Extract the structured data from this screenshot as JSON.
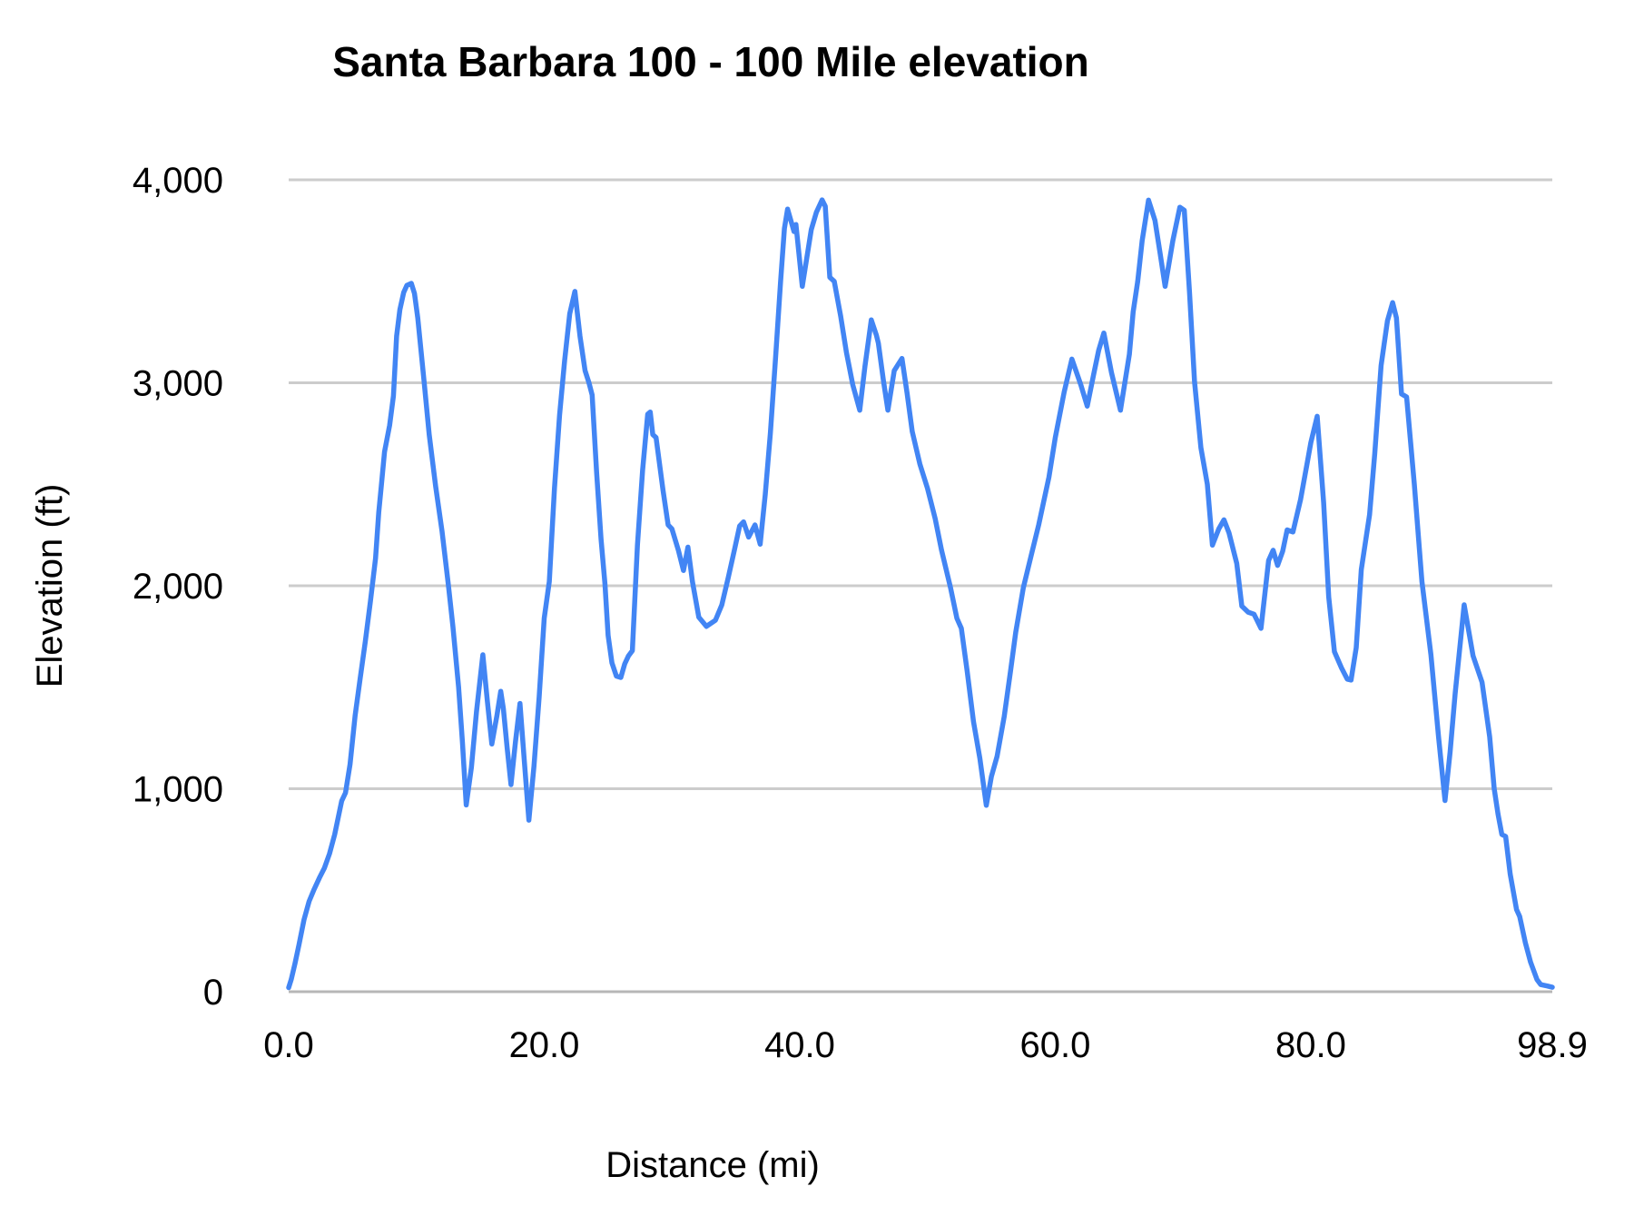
{
  "title": "Santa Barbara 100 - 100 Mile elevation",
  "x_axis": {
    "label": "Distance (mi)",
    "tick_labels": [
      "0.0",
      "20.0",
      "40.0",
      "60.0",
      "80.0",
      "98.9"
    ],
    "tick_values": [
      0,
      20,
      40,
      60,
      80,
      98.9
    ]
  },
  "y_axis": {
    "label": "Elevation (ft)",
    "tick_labels": [
      "0",
      "1,000",
      "2,000",
      "3,000",
      "4,000"
    ],
    "tick_values": [
      0,
      1000,
      2000,
      3000,
      4000
    ]
  },
  "colors": {
    "line": "#4285f4",
    "gridline": "#cccccc",
    "baseline": "#b7b7b7",
    "text": "#000000",
    "background": "#ffffff"
  },
  "chart_data": {
    "type": "line",
    "title": "Santa Barbara 100 - 100 Mile elevation",
    "xlabel": "Distance (mi)",
    "ylabel": "Elevation (ft)",
    "xlim": [
      0,
      98.9
    ],
    "ylim": [
      0,
      4000
    ],
    "grid": "horizontal-only",
    "legend": false,
    "series": [
      {
        "name": "elevation",
        "points": [
          [
            0,
            20
          ],
          [
            0.2,
            60
          ],
          [
            0.5,
            140
          ],
          [
            0.8,
            230
          ],
          [
            1.2,
            355
          ],
          [
            1.6,
            445
          ],
          [
            2.0,
            505
          ],
          [
            2.4,
            560
          ],
          [
            2.8,
            610
          ],
          [
            3.2,
            680
          ],
          [
            3.6,
            775
          ],
          [
            3.9,
            865
          ],
          [
            4.15,
            940
          ],
          [
            4.45,
            980
          ],
          [
            4.8,
            1120
          ],
          [
            5.2,
            1360
          ],
          [
            5.6,
            1545
          ],
          [
            6.0,
            1725
          ],
          [
            6.4,
            1925
          ],
          [
            6.8,
            2135
          ],
          [
            7.05,
            2360
          ],
          [
            7.25,
            2490
          ],
          [
            7.5,
            2660
          ],
          [
            7.9,
            2790
          ],
          [
            8.2,
            2935
          ],
          [
            8.45,
            3230
          ],
          [
            8.7,
            3360
          ],
          [
            9.0,
            3445
          ],
          [
            9.25,
            3480
          ],
          [
            9.6,
            3490
          ],
          [
            9.85,
            3440
          ],
          [
            10.1,
            3320
          ],
          [
            10.6,
            3005
          ],
          [
            11.0,
            2745
          ],
          [
            11.5,
            2490
          ],
          [
            12.0,
            2270
          ],
          [
            12.5,
            2005
          ],
          [
            12.85,
            1800
          ],
          [
            13.3,
            1500
          ],
          [
            13.6,
            1230
          ],
          [
            13.9,
            920
          ],
          [
            14.3,
            1105
          ],
          [
            14.7,
            1380
          ],
          [
            15.2,
            1660
          ],
          [
            15.55,
            1430
          ],
          [
            15.9,
            1220
          ],
          [
            16.3,
            1360
          ],
          [
            16.6,
            1480
          ],
          [
            16.8,
            1395
          ],
          [
            17.1,
            1200
          ],
          [
            17.4,
            1020
          ],
          [
            17.75,
            1230
          ],
          [
            18.1,
            1420
          ],
          [
            18.45,
            1130
          ],
          [
            18.8,
            845
          ],
          [
            19.2,
            1110
          ],
          [
            19.6,
            1450
          ],
          [
            20.0,
            1840
          ],
          [
            20.4,
            2020
          ],
          [
            20.8,
            2480
          ],
          [
            21.2,
            2840
          ],
          [
            21.6,
            3110
          ],
          [
            22.0,
            3340
          ],
          [
            22.4,
            3450
          ],
          [
            22.8,
            3230
          ],
          [
            23.2,
            3060
          ],
          [
            23.5,
            3000
          ],
          [
            23.75,
            2940
          ],
          [
            24.1,
            2560
          ],
          [
            24.45,
            2230
          ],
          [
            24.75,
            2010
          ],
          [
            25.0,
            1755
          ],
          [
            25.3,
            1620
          ],
          [
            25.65,
            1555
          ],
          [
            26.0,
            1548
          ],
          [
            26.3,
            1615
          ],
          [
            26.6,
            1655
          ],
          [
            26.9,
            1680
          ],
          [
            27.3,
            2200
          ],
          [
            27.7,
            2570
          ],
          [
            28.1,
            2845
          ],
          [
            28.3,
            2856
          ],
          [
            28.5,
            2745
          ],
          [
            28.75,
            2730
          ],
          [
            29.3,
            2470
          ],
          [
            29.7,
            2300
          ],
          [
            30.0,
            2280
          ],
          [
            30.5,
            2175
          ],
          [
            30.9,
            2075
          ],
          [
            31.25,
            2190
          ],
          [
            31.6,
            2020
          ],
          [
            32.1,
            1845
          ],
          [
            32.7,
            1800
          ],
          [
            33.4,
            1830
          ],
          [
            33.9,
            1905
          ],
          [
            34.4,
            2040
          ],
          [
            34.9,
            2180
          ],
          [
            35.3,
            2295
          ],
          [
            35.6,
            2315
          ],
          [
            36.0,
            2240
          ],
          [
            36.5,
            2300
          ],
          [
            36.9,
            2205
          ],
          [
            37.3,
            2450
          ],
          [
            37.7,
            2750
          ],
          [
            38.1,
            3120
          ],
          [
            38.5,
            3500
          ],
          [
            38.8,
            3760
          ],
          [
            39.05,
            3856
          ],
          [
            39.35,
            3790
          ],
          [
            39.55,
            3745
          ],
          [
            39.7,
            3780
          ],
          [
            40.2,
            3475
          ],
          [
            40.9,
            3755
          ],
          [
            41.3,
            3840
          ],
          [
            41.75,
            3901
          ],
          [
            42.0,
            3870
          ],
          [
            42.35,
            3520
          ],
          [
            42.7,
            3500
          ],
          [
            43.2,
            3330
          ],
          [
            43.65,
            3150
          ],
          [
            44.15,
            2990
          ],
          [
            44.7,
            2865
          ],
          [
            45.1,
            3080
          ],
          [
            45.6,
            3310
          ],
          [
            46.0,
            3235
          ],
          [
            46.15,
            3195
          ],
          [
            46.55,
            3010
          ],
          [
            46.9,
            2865
          ],
          [
            47.4,
            3060
          ],
          [
            48.0,
            3120
          ],
          [
            48.4,
            2950
          ],
          [
            48.8,
            2760
          ],
          [
            49.4,
            2600
          ],
          [
            50.0,
            2480
          ],
          [
            50.6,
            2330
          ],
          [
            51.1,
            2175
          ],
          [
            51.8,
            1990
          ],
          [
            52.3,
            1840
          ],
          [
            52.65,
            1790
          ],
          [
            53.1,
            1580
          ],
          [
            53.6,
            1330
          ],
          [
            54.1,
            1150
          ],
          [
            54.6,
            918
          ],
          [
            55.0,
            1060
          ],
          [
            55.45,
            1160
          ],
          [
            56.0,
            1355
          ],
          [
            56.5,
            1580
          ],
          [
            56.9,
            1770
          ],
          [
            57.5,
            1990
          ],
          [
            58.1,
            2145
          ],
          [
            58.7,
            2300
          ],
          [
            59.5,
            2535
          ],
          [
            60.0,
            2730
          ],
          [
            60.7,
            2955
          ],
          [
            61.3,
            3117
          ],
          [
            62.0,
            2990
          ],
          [
            62.5,
            2885
          ],
          [
            63.0,
            3040
          ],
          [
            63.4,
            3160
          ],
          [
            63.8,
            3245
          ],
          [
            64.4,
            3050
          ],
          [
            65.1,
            2865
          ],
          [
            65.8,
            3140
          ],
          [
            66.1,
            3350
          ],
          [
            66.45,
            3500
          ],
          [
            66.8,
            3700
          ],
          [
            67.3,
            3900
          ],
          [
            67.8,
            3800
          ],
          [
            68.2,
            3640
          ],
          [
            68.6,
            3475
          ],
          [
            69.2,
            3700
          ],
          [
            69.75,
            3865
          ],
          [
            70.1,
            3850
          ],
          [
            70.5,
            3450
          ],
          [
            70.9,
            3005
          ],
          [
            71.4,
            2680
          ],
          [
            71.9,
            2500
          ],
          [
            72.3,
            2200
          ],
          [
            72.8,
            2280
          ],
          [
            73.2,
            2325
          ],
          [
            73.6,
            2260
          ],
          [
            74.2,
            2110
          ],
          [
            74.6,
            1900
          ],
          [
            75.1,
            1870
          ],
          [
            75.55,
            1860
          ],
          [
            76.1,
            1790
          ],
          [
            76.7,
            2125
          ],
          [
            77.05,
            2175
          ],
          [
            77.4,
            2100
          ],
          [
            77.8,
            2170
          ],
          [
            78.15,
            2275
          ],
          [
            78.6,
            2265
          ],
          [
            79.2,
            2425
          ],
          [
            79.7,
            2600
          ],
          [
            80.0,
            2705
          ],
          [
            80.5,
            2835
          ],
          [
            81.0,
            2410
          ],
          [
            81.4,
            1945
          ],
          [
            81.85,
            1675
          ],
          [
            82.4,
            1595
          ],
          [
            82.85,
            1540
          ],
          [
            83.15,
            1535
          ],
          [
            83.55,
            1695
          ],
          [
            83.95,
            2080
          ],
          [
            84.6,
            2350
          ],
          [
            85.0,
            2650
          ],
          [
            85.5,
            3085
          ],
          [
            86.0,
            3305
          ],
          [
            86.4,
            3395
          ],
          [
            86.7,
            3320
          ],
          [
            87.1,
            2945
          ],
          [
            87.5,
            2930
          ],
          [
            88.1,
            2500
          ],
          [
            88.7,
            2020
          ],
          [
            89.4,
            1660
          ],
          [
            90.0,
            1255
          ],
          [
            90.5,
            942
          ],
          [
            90.9,
            1180
          ],
          [
            91.3,
            1470
          ],
          [
            92.0,
            1906
          ],
          [
            92.7,
            1655
          ],
          [
            93.4,
            1525
          ],
          [
            94.0,
            1256
          ],
          [
            94.35,
            1000
          ],
          [
            94.65,
            875
          ],
          [
            94.95,
            775
          ],
          [
            95.25,
            765
          ],
          [
            95.6,
            580
          ],
          [
            96.1,
            405
          ],
          [
            96.35,
            370
          ],
          [
            96.8,
            240
          ],
          [
            97.2,
            145
          ],
          [
            97.7,
            60
          ],
          [
            98.0,
            35
          ],
          [
            98.5,
            28
          ],
          [
            98.9,
            22
          ]
        ]
      }
    ]
  }
}
